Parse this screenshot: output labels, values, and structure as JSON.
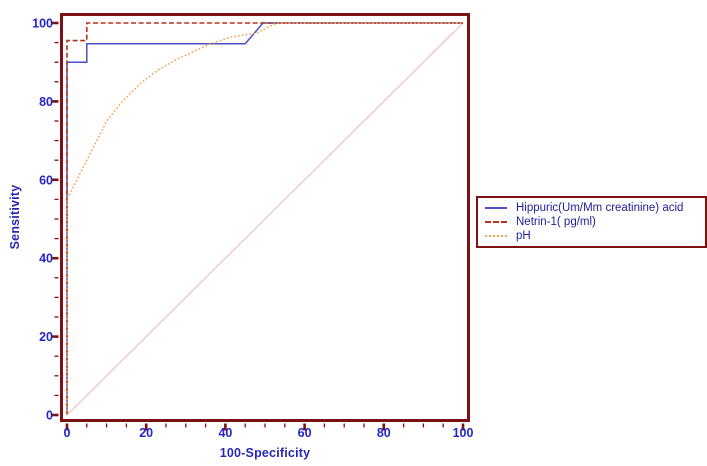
{
  "figure": {
    "background": "#ffffff"
  },
  "chart_data": {
    "type": "line",
    "subtype": "roc-curve",
    "title": "",
    "xlabel": "100-Specificity",
    "ylabel": "Sensitivity",
    "xlim": [
      0,
      100
    ],
    "ylim": [
      0,
      100
    ],
    "x_ticks": [
      0,
      20,
      40,
      60,
      80,
      100
    ],
    "y_ticks": [
      0,
      20,
      40,
      60,
      80,
      100
    ],
    "minor_tick_step": 5,
    "grid": false,
    "legend_position": "right-outside-middle",
    "axis_color": "#7b1113",
    "tick_label_color": "#2626c8",
    "axis_title_color": "#2828b4",
    "series": [
      {
        "name": "Hippuric(Um/Mm creatinine) acid",
        "color": "#4c50c4",
        "style": "solid",
        "points": [
          [
            0,
            0
          ],
          [
            0,
            90
          ],
          [
            5,
            90
          ],
          [
            5,
            94.7
          ],
          [
            45,
            94.7
          ],
          [
            49.5,
            100
          ],
          [
            100,
            100
          ]
        ]
      },
      {
        "name": "Netrin-1( pg/ml)",
        "color": "#b5321f",
        "style": "dashed",
        "points": [
          [
            0,
            0
          ],
          [
            0,
            95.5
          ],
          [
            5,
            95.5
          ],
          [
            5,
            100
          ],
          [
            100,
            100
          ]
        ]
      },
      {
        "name": "pH",
        "color": "#f1a455",
        "style": "dotted",
        "points": [
          [
            0,
            0
          ],
          [
            0,
            55
          ],
          [
            10,
            75
          ],
          [
            14,
            80
          ],
          [
            19,
            85
          ],
          [
            23,
            88
          ],
          [
            27.5,
            90.6
          ],
          [
            31.5,
            92.5
          ],
          [
            36,
            94.6
          ],
          [
            41,
            96.3
          ],
          [
            48,
            97.5
          ],
          [
            53,
            100
          ],
          [
            100,
            100
          ]
        ]
      }
    ],
    "reference_line": {
      "name": "chance-diagonal",
      "color": "#efb9b9",
      "style": "solid",
      "points": [
        [
          0,
          0
        ],
        [
          100,
          100
        ]
      ]
    }
  },
  "legend": {
    "border_color": "#7b1113"
  }
}
